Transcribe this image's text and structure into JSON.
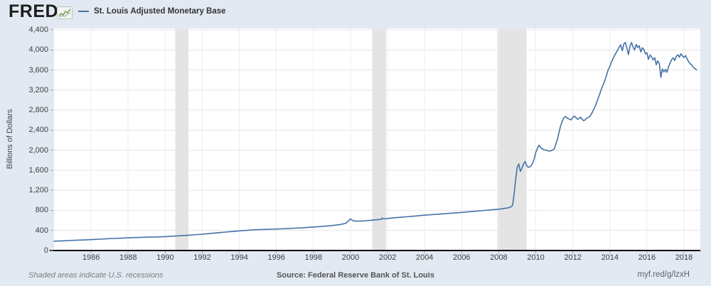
{
  "header": {
    "logo_text": "FRED",
    "logo_registered": "®",
    "legend_label": "St. Louis Adjusted Monetary Base",
    "legend_line_color": "#4572a7"
  },
  "footer": {
    "note": "Shaded areas indicate U.S. recessions",
    "source": "Source: Federal Reserve Bank of St. Louis",
    "short_url": "myf.red/g/lzxH"
  },
  "colors": {
    "background": "#e2e9f2",
    "plot_background": "#ffffff",
    "line": "#4572a7",
    "recession_band": "#e4e4e4",
    "h_gridline": "#e6e6e6",
    "v_gridline": "#ededed",
    "axis": "#000000",
    "tick": "#a3adb9",
    "y_tick_mark": "#9aa3ad",
    "label_text": "#3f3f3f"
  },
  "chart_data": {
    "type": "line",
    "title": "St. Louis Adjusted Monetary Base",
    "xlabel": "",
    "ylabel": "Billions of Dollars",
    "x_range": [
      1984.0,
      2018.88
    ],
    "ylim": [
      0,
      4400
    ],
    "grid": true,
    "legend_position": "top-left",
    "y_ticks": [
      {
        "v": 0,
        "label": "0"
      },
      {
        "v": 400,
        "label": "400"
      },
      {
        "v": 800,
        "label": "800"
      },
      {
        "v": 1200,
        "label": "1,200"
      },
      {
        "v": 1600,
        "label": "1,600"
      },
      {
        "v": 2000,
        "label": "2,000"
      },
      {
        "v": 2400,
        "label": "2,400"
      },
      {
        "v": 2800,
        "label": "2,800"
      },
      {
        "v": 3200,
        "label": "3,200"
      },
      {
        "v": 3600,
        "label": "3,600"
      },
      {
        "v": 4000,
        "label": "4,000"
      },
      {
        "v": 4400,
        "label": "4,400"
      }
    ],
    "x_ticks": [
      {
        "v": 1986,
        "label": "1986"
      },
      {
        "v": 1988,
        "label": "1988"
      },
      {
        "v": 1990,
        "label": "1990"
      },
      {
        "v": 1992,
        "label": "1992"
      },
      {
        "v": 1994,
        "label": "1994"
      },
      {
        "v": 1996,
        "label": "1996"
      },
      {
        "v": 1998,
        "label": "1998"
      },
      {
        "v": 2000,
        "label": "2000"
      },
      {
        "v": 2002,
        "label": "2002"
      },
      {
        "v": 2004,
        "label": "2004"
      },
      {
        "v": 2006,
        "label": "2006"
      },
      {
        "v": 2008,
        "label": "2008"
      },
      {
        "v": 2010,
        "label": "2010"
      },
      {
        "v": 2012,
        "label": "2012"
      },
      {
        "v": 2014,
        "label": "2014"
      },
      {
        "v": 2016,
        "label": "2016"
      },
      {
        "v": 2018,
        "label": "2018"
      }
    ],
    "recessions": [
      {
        "start": 1990.54,
        "end": 1991.25
      },
      {
        "start": 2001.17,
        "end": 2001.92
      },
      {
        "start": 2007.92,
        "end": 2009.5
      }
    ],
    "series": [
      {
        "name": "St. Louis Adjusted Monetary Base",
        "color": "#4572a7",
        "units": "Billions of Dollars",
        "points": [
          [
            1984.0,
            185
          ],
          [
            1984.25,
            190
          ],
          [
            1984.5,
            194
          ],
          [
            1984.75,
            198
          ],
          [
            1985.0,
            202
          ],
          [
            1985.25,
            206
          ],
          [
            1985.5,
            210
          ],
          [
            1985.75,
            214
          ],
          [
            1986.0,
            218
          ],
          [
            1986.25,
            222
          ],
          [
            1986.5,
            227
          ],
          [
            1986.75,
            232
          ],
          [
            1987.0,
            237
          ],
          [
            1987.25,
            241
          ],
          [
            1987.5,
            245
          ],
          [
            1987.75,
            249
          ],
          [
            1988.0,
            253
          ],
          [
            1988.25,
            257
          ],
          [
            1988.5,
            260
          ],
          [
            1988.75,
            263
          ],
          [
            1989.0,
            266
          ],
          [
            1989.25,
            268
          ],
          [
            1989.5,
            270
          ],
          [
            1989.75,
            273
          ],
          [
            1990.0,
            277
          ],
          [
            1990.25,
            282
          ],
          [
            1990.5,
            287
          ],
          [
            1990.75,
            293
          ],
          [
            1991.0,
            299
          ],
          [
            1991.25,
            305
          ],
          [
            1991.5,
            311
          ],
          [
            1991.75,
            318
          ],
          [
            1992.0,
            326
          ],
          [
            1992.25,
            334
          ],
          [
            1992.5,
            342
          ],
          [
            1992.75,
            351
          ],
          [
            1993.0,
            360
          ],
          [
            1993.25,
            368
          ],
          [
            1993.5,
            376
          ],
          [
            1993.75,
            384
          ],
          [
            1994.0,
            392
          ],
          [
            1994.25,
            399
          ],
          [
            1994.5,
            405
          ],
          [
            1994.75,
            411
          ],
          [
            1995.0,
            416
          ],
          [
            1995.25,
            419
          ],
          [
            1995.5,
            422
          ],
          [
            1995.75,
            425
          ],
          [
            1996.0,
            428
          ],
          [
            1996.25,
            432
          ],
          [
            1996.5,
            436
          ],
          [
            1996.75,
            440
          ],
          [
            1997.0,
            445
          ],
          [
            1997.25,
            450
          ],
          [
            1997.5,
            456
          ],
          [
            1997.75,
            462
          ],
          [
            1998.0,
            468
          ],
          [
            1998.25,
            475
          ],
          [
            1998.5,
            482
          ],
          [
            1998.75,
            490
          ],
          [
            1999.0,
            498
          ],
          [
            1999.25,
            508
          ],
          [
            1999.5,
            520
          ],
          [
            1999.75,
            545
          ],
          [
            1999.92,
            600
          ],
          [
            2000.0,
            632
          ],
          [
            2000.08,
            605
          ],
          [
            2000.17,
            590
          ],
          [
            2000.33,
            586
          ],
          [
            2000.5,
            587
          ],
          [
            2000.67,
            590
          ],
          [
            2000.83,
            594
          ],
          [
            2001.0,
            599
          ],
          [
            2001.17,
            605
          ],
          [
            2001.33,
            611
          ],
          [
            2001.5,
            617
          ],
          [
            2001.67,
            624
          ],
          [
            2001.71,
            648
          ],
          [
            2001.79,
            630
          ],
          [
            2001.92,
            634
          ],
          [
            2002.0,
            640
          ],
          [
            2002.25,
            648
          ],
          [
            2002.5,
            656
          ],
          [
            2002.75,
            664
          ],
          [
            2003.0,
            672
          ],
          [
            2003.25,
            680
          ],
          [
            2003.5,
            688
          ],
          [
            2003.75,
            696
          ],
          [
            2004.0,
            704
          ],
          [
            2004.25,
            712
          ],
          [
            2004.5,
            719
          ],
          [
            2004.75,
            725
          ],
          [
            2005.0,
            731
          ],
          [
            2005.25,
            738
          ],
          [
            2005.5,
            745
          ],
          [
            2005.75,
            752
          ],
          [
            2006.0,
            760
          ],
          [
            2006.25,
            768
          ],
          [
            2006.5,
            776
          ],
          [
            2006.75,
            784
          ],
          [
            2007.0,
            792
          ],
          [
            2007.25,
            800
          ],
          [
            2007.5,
            808
          ],
          [
            2007.75,
            816
          ],
          [
            2008.0,
            824
          ],
          [
            2008.17,
            832
          ],
          [
            2008.33,
            840
          ],
          [
            2008.5,
            850
          ],
          [
            2008.58,
            860
          ],
          [
            2008.67,
            871
          ],
          [
            2008.75,
            905
          ],
          [
            2008.83,
            1130
          ],
          [
            2008.92,
            1435
          ],
          [
            2009.0,
            1662
          ],
          [
            2009.08,
            1727
          ],
          [
            2009.17,
            1578
          ],
          [
            2009.25,
            1640
          ],
          [
            2009.33,
            1716
          ],
          [
            2009.42,
            1774
          ],
          [
            2009.5,
            1702
          ],
          [
            2009.58,
            1660
          ],
          [
            2009.67,
            1668
          ],
          [
            2009.75,
            1692
          ],
          [
            2009.83,
            1740
          ],
          [
            2009.92,
            1830
          ],
          [
            2010.0,
            1960
          ],
          [
            2010.08,
            2030
          ],
          [
            2010.17,
            2100
          ],
          [
            2010.25,
            2060
          ],
          [
            2010.33,
            2030
          ],
          [
            2010.42,
            2015
          ],
          [
            2010.5,
            2005
          ],
          [
            2010.58,
            1995
          ],
          [
            2010.67,
            1988
          ],
          [
            2010.75,
            1982
          ],
          [
            2010.83,
            1990
          ],
          [
            2010.92,
            2005
          ],
          [
            2011.0,
            2030
          ],
          [
            2011.08,
            2115
          ],
          [
            2011.17,
            2220
          ],
          [
            2011.25,
            2350
          ],
          [
            2011.33,
            2470
          ],
          [
            2011.42,
            2570
          ],
          [
            2011.5,
            2637
          ],
          [
            2011.58,
            2672
          ],
          [
            2011.67,
            2650
          ],
          [
            2011.75,
            2628
          ],
          [
            2011.83,
            2615
          ],
          [
            2011.92,
            2605
          ],
          [
            2012.0,
            2655
          ],
          [
            2012.08,
            2680
          ],
          [
            2012.17,
            2650
          ],
          [
            2012.25,
            2618
          ],
          [
            2012.33,
            2632
          ],
          [
            2012.42,
            2658
          ],
          [
            2012.5,
            2622
          ],
          [
            2012.58,
            2588
          ],
          [
            2012.67,
            2608
          ],
          [
            2012.75,
            2638
          ],
          [
            2012.83,
            2652
          ],
          [
            2012.92,
            2672
          ],
          [
            2013.0,
            2722
          ],
          [
            2013.08,
            2780
          ],
          [
            2013.17,
            2845
          ],
          [
            2013.25,
            2920
          ],
          [
            2013.33,
            3005
          ],
          [
            2013.42,
            3090
          ],
          [
            2013.5,
            3175
          ],
          [
            2013.58,
            3255
          ],
          [
            2013.67,
            3335
          ],
          [
            2013.75,
            3415
          ],
          [
            2013.83,
            3510
          ],
          [
            2013.92,
            3615
          ],
          [
            2014.0,
            3670
          ],
          [
            2014.08,
            3755
          ],
          [
            2014.17,
            3830
          ],
          [
            2014.25,
            3885
          ],
          [
            2014.33,
            3940
          ],
          [
            2014.42,
            4000
          ],
          [
            2014.5,
            4055
          ],
          [
            2014.58,
            4100
          ],
          [
            2014.67,
            3985
          ],
          [
            2014.75,
            4120
          ],
          [
            2014.83,
            4150
          ],
          [
            2014.92,
            4030
          ],
          [
            2015.0,
            3905
          ],
          [
            2015.08,
            4075
          ],
          [
            2015.17,
            4148
          ],
          [
            2015.25,
            4058
          ],
          [
            2015.33,
            3998
          ],
          [
            2015.42,
            4108
          ],
          [
            2015.5,
            4048
          ],
          [
            2015.58,
            4082
          ],
          [
            2015.67,
            3958
          ],
          [
            2015.75,
            4042
          ],
          [
            2015.83,
            4008
          ],
          [
            2015.92,
            3918
          ],
          [
            2016.0,
            3942
          ],
          [
            2016.08,
            3812
          ],
          [
            2016.17,
            3898
          ],
          [
            2016.25,
            3858
          ],
          [
            2016.33,
            3802
          ],
          [
            2016.42,
            3842
          ],
          [
            2016.5,
            3702
          ],
          [
            2016.58,
            3782
          ],
          [
            2016.67,
            3722
          ],
          [
            2016.75,
            3452
          ],
          [
            2016.83,
            3622
          ],
          [
            2016.92,
            3558
          ],
          [
            2017.0,
            3612
          ],
          [
            2017.08,
            3552
          ],
          [
            2017.17,
            3672
          ],
          [
            2017.25,
            3742
          ],
          [
            2017.33,
            3802
          ],
          [
            2017.42,
            3842
          ],
          [
            2017.5,
            3788
          ],
          [
            2017.58,
            3868
          ],
          [
            2017.67,
            3902
          ],
          [
            2017.75,
            3852
          ],
          [
            2017.83,
            3922
          ],
          [
            2017.92,
            3878
          ],
          [
            2018.0,
            3848
          ],
          [
            2018.08,
            3888
          ],
          [
            2018.17,
            3818
          ],
          [
            2018.25,
            3762
          ],
          [
            2018.33,
            3722
          ],
          [
            2018.42,
            3698
          ],
          [
            2018.5,
            3652
          ],
          [
            2018.58,
            3632
          ],
          [
            2018.67,
            3602
          ]
        ]
      }
    ]
  }
}
